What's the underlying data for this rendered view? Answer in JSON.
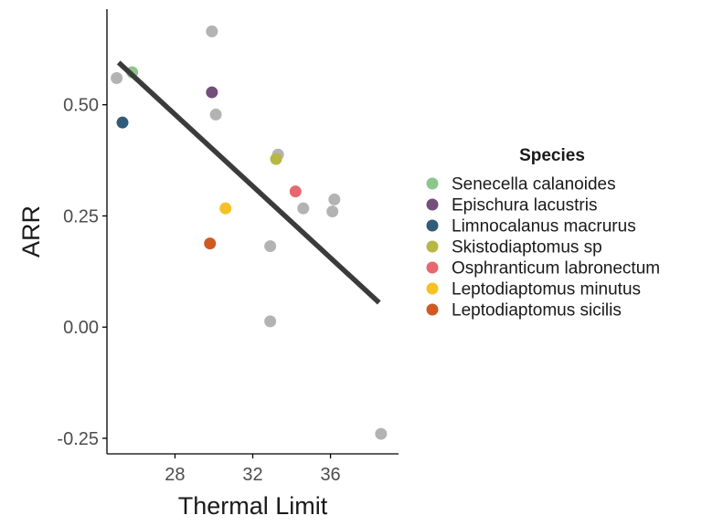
{
  "chart_data": {
    "type": "scatter",
    "xlabel": "Thermal Limit",
    "ylabel": "ARR",
    "xlim": [
      24.5,
      39.5
    ],
    "ylim": [
      -0.285,
      0.715
    ],
    "x_ticks": [
      28,
      32,
      36
    ],
    "x_tick_labels": [
      "28",
      "32",
      "36"
    ],
    "y_ticks": [
      -0.25,
      0,
      0.25,
      0.5
    ],
    "y_tick_labels": [
      "-0.25",
      "0.00",
      "0.25",
      "0.50"
    ],
    "grid": false,
    "legend": {
      "title": "Species",
      "placement": "right",
      "entries": [
        {
          "label": "Senecella calanoides",
          "color": "#8cc68a"
        },
        {
          "label": "Epischura lacustris",
          "color": "#744f7a"
        },
        {
          "label": "Limnocalanus macrurus",
          "color": "#325a79"
        },
        {
          "label": "Skistodiaptomus sp",
          "color": "#b7b844"
        },
        {
          "label": "Osphranticum labronectum",
          "color": "#e8666e"
        },
        {
          "label": "Leptodiaptomus minutus",
          "color": "#f7c025"
        },
        {
          "label": "Leptodiaptomus sicilis",
          "color": "#cf5a22"
        }
      ]
    },
    "other_color": "#b3b3b3",
    "points": [
      {
        "x": 29.9,
        "y": 0.665,
        "species": null
      },
      {
        "x": 25.0,
        "y": 0.56,
        "species": null
      },
      {
        "x": 30.1,
        "y": 0.478,
        "species": null
      },
      {
        "x": 33.3,
        "y": 0.388,
        "species": null
      },
      {
        "x": 36.2,
        "y": 0.287,
        "species": null
      },
      {
        "x": 34.6,
        "y": 0.267,
        "species": null
      },
      {
        "x": 36.1,
        "y": 0.26,
        "species": null
      },
      {
        "x": 32.9,
        "y": 0.182,
        "species": null
      },
      {
        "x": 32.9,
        "y": 0.013,
        "species": null
      },
      {
        "x": 38.6,
        "y": -0.24,
        "species": null
      },
      {
        "x": 25.8,
        "y": 0.573,
        "species": "Senecella calanoides"
      },
      {
        "x": 29.9,
        "y": 0.528,
        "species": "Epischura lacustris"
      },
      {
        "x": 25.3,
        "y": 0.46,
        "species": "Limnocalanus macrurus"
      },
      {
        "x": 33.2,
        "y": 0.378,
        "species": "Skistodiaptomus sp"
      },
      {
        "x": 34.2,
        "y": 0.305,
        "species": "Osphranticum labronectum"
      },
      {
        "x": 30.6,
        "y": 0.267,
        "species": "Leptodiaptomus minutus"
      },
      {
        "x": 29.8,
        "y": 0.188,
        "species": "Leptodiaptomus sicilis"
      }
    ],
    "trend_line": {
      "x": [
        25.1,
        38.5
      ],
      "y": [
        0.595,
        0.055
      ],
      "color": "#3b3b3b"
    }
  }
}
